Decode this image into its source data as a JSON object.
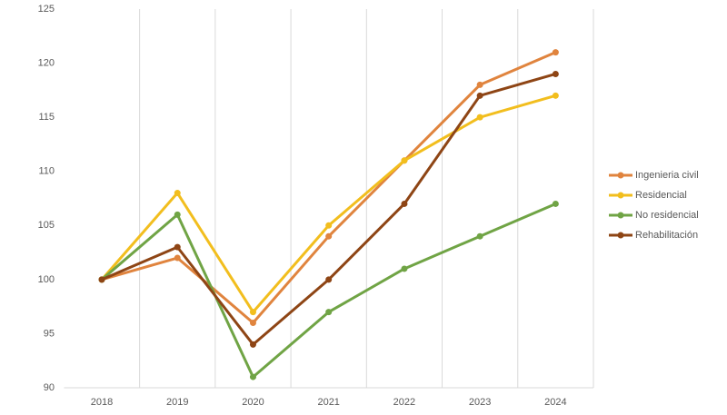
{
  "chart_data": {
    "type": "line",
    "categories": [
      "2018",
      "2019",
      "2020",
      "2021",
      "2022",
      "2023",
      "2024"
    ],
    "series": [
      {
        "name": "Ingenieria civil",
        "color": "#e0843e",
        "values": [
          100,
          102,
          96,
          104,
          111,
          118,
          121
        ]
      },
      {
        "name": "Residencial",
        "color": "#f2be1e",
        "values": [
          100,
          108,
          97,
          105,
          111,
          115,
          117
        ]
      },
      {
        "name": "No residencial",
        "color": "#70a445",
        "values": [
          100,
          106,
          91,
          97,
          101,
          104,
          107
        ]
      },
      {
        "name": "Rehabilitación",
        "color": "#8e4515",
        "values": [
          100,
          103,
          94,
          100,
          107,
          117,
          119
        ]
      }
    ],
    "ylim": [
      90,
      125
    ],
    "yticks": [
      90,
      95,
      100,
      105,
      110,
      115,
      120,
      125
    ],
    "legend": "right"
  }
}
